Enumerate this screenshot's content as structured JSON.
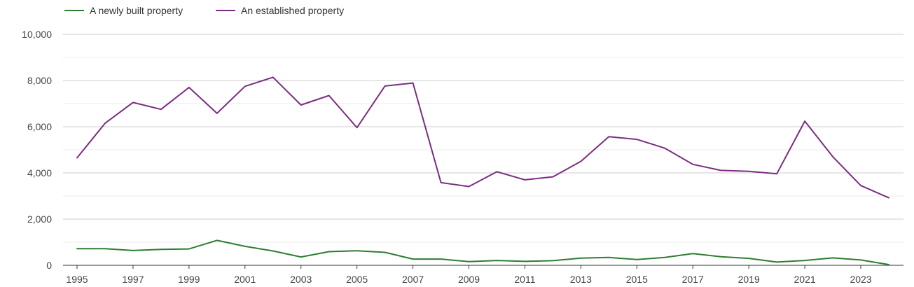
{
  "chart_data": {
    "type": "line",
    "title": "",
    "xlabel": "",
    "ylabel": "",
    "x": [
      1995,
      1996,
      1997,
      1998,
      1999,
      2000,
      2001,
      2002,
      2003,
      2004,
      2005,
      2006,
      2007,
      2008,
      2009,
      2010,
      2011,
      2012,
      2013,
      2014,
      2015,
      2016,
      2017,
      2018,
      2019,
      2020,
      2021,
      2022,
      2023,
      2024
    ],
    "x_tick_labels": [
      "1995",
      "1997",
      "1999",
      "2001",
      "2003",
      "2005",
      "2007",
      "2009",
      "2011",
      "2013",
      "2015",
      "2017",
      "2019",
      "2021",
      "2023"
    ],
    "y_tick_labels": [
      "0",
      "2,000",
      "4,000",
      "6,000",
      "8,000",
      "10,000"
    ],
    "ylim": [
      0,
      10000
    ],
    "xlim": [
      1995,
      2024
    ],
    "grid": true,
    "legend_position": "top-left",
    "series": [
      {
        "name": "A newly built property",
        "color": "#2e7d32",
        "values": [
          720,
          720,
          640,
          690,
          710,
          1080,
          820,
          620,
          360,
          590,
          630,
          560,
          270,
          270,
          160,
          210,
          170,
          200,
          310,
          340,
          250,
          340,
          510,
          370,
          300,
          140,
          210,
          320,
          230,
          30
        ]
      },
      {
        "name": "An established property",
        "color": "#7b2d82",
        "values": [
          4650,
          6150,
          7050,
          6750,
          7700,
          6580,
          7750,
          8140,
          6940,
          7350,
          5960,
          7760,
          7890,
          3580,
          3410,
          4050,
          3700,
          3830,
          4500,
          5570,
          5450,
          5070,
          4370,
          4110,
          4070,
          3960,
          6240,
          4700,
          3450,
          2920
        ]
      }
    ]
  }
}
